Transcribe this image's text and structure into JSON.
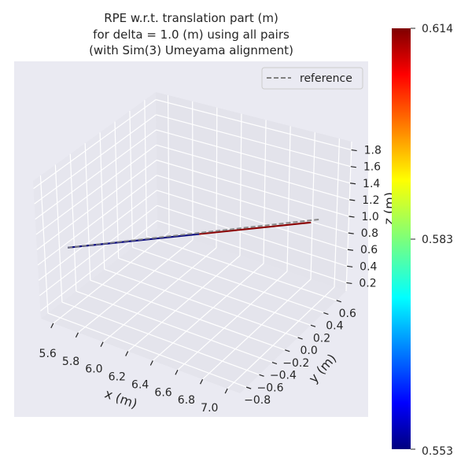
{
  "chart_data": {
    "type": "line3d",
    "title": [
      "RPE w.r.t. translation part (m)",
      "for delta = 1.0 (m) using all pairs",
      "(with Sim(3) Umeyama alignment)"
    ],
    "xlabel": "x (m)",
    "ylabel": "y (m)",
    "zlabel": "z (m)",
    "xlim": [
      5.5,
      7.1
    ],
    "ylim": [
      -0.9,
      0.75
    ],
    "zlim": [
      0.1,
      1.9
    ],
    "xticks": [
      "5.6",
      "5.8",
      "6.0",
      "6.2",
      "6.4",
      "6.6",
      "6.8",
      "7.0"
    ],
    "yticks": [
      "−0.8",
      "−0.6",
      "−0.4",
      "−0.2",
      "0.0",
      "0.2",
      "0.4",
      "0.6"
    ],
    "zticks": [
      "0.2",
      "0.4",
      "0.6",
      "0.8",
      "1.0",
      "1.2",
      "1.4",
      "1.6",
      "1.8"
    ],
    "grid": true,
    "legend": {
      "placement": "top-right",
      "entries": [
        {
          "label": "reference",
          "style": "dashed",
          "color": "#808080"
        }
      ]
    },
    "reference": {
      "start": [
        5.55,
        -0.57,
        0.82
      ],
      "end": [
        7.1,
        0.3,
        1.3
      ]
    },
    "trajectory": {
      "start": [
        5.55,
        -0.57,
        0.82
      ],
      "end": [
        7.05,
        0.26,
        1.27
      ],
      "low_error_fraction": 0.54,
      "low_color": "#0a0a80",
      "high_color": "#8b0000"
    },
    "colorbar": {
      "colormap": "jet",
      "min": "0.553",
      "mid": "0.583",
      "max": "0.614"
    },
    "colors": {
      "background": "#eaeaf2",
      "pane": "#e4e4ec",
      "grid": "#ffffff"
    }
  }
}
